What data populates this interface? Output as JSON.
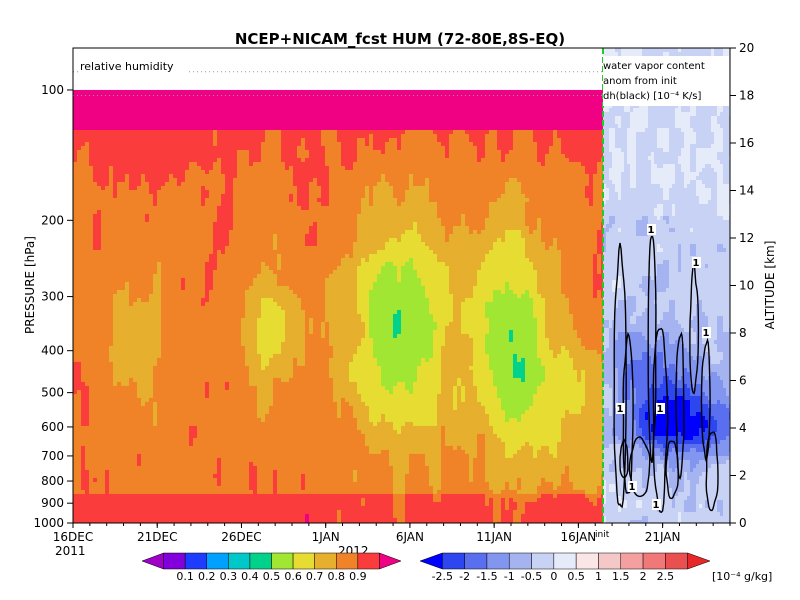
{
  "chart_data": {
    "type": "heatmap",
    "title": "NCEP+NICAM_fcst HUM (72-80E,8S-EQ)",
    "left_panel": {
      "label": "relative humidity",
      "ylabel": "PRESSURE [hPa]",
      "pressure_ticks": [
        "100",
        "200",
        "300",
        "400",
        "500",
        "600",
        "700",
        "800",
        "900",
        "1000"
      ],
      "pressure_values": [
        100,
        200,
        300,
        400,
        500,
        600,
        700,
        800,
        900,
        1000
      ],
      "ylim_hPa": [
        1000,
        80
      ],
      "y_scale": "log"
    },
    "right_panel": {
      "label_lines": [
        "water vapor content",
        "anom from init",
        "dh(black) [10⁻⁴ K/s]"
      ],
      "ylabel": "ALTITUDE [km]",
      "altitude_ticks": [
        "0",
        "2",
        "4",
        "6",
        "8",
        "10",
        "12",
        "14",
        "16",
        "18",
        "20"
      ],
      "ylim_km": [
        0,
        20
      ],
      "contour_labels": [
        "1",
        "1",
        "1",
        "1",
        "1",
        "1",
        "1"
      ]
    },
    "x_axis": {
      "ticks": [
        "16DEC",
        "21DEC",
        "26DEC",
        "1JAN",
        "6JAN",
        "11JAN",
        "16JAN",
        "21JAN"
      ],
      "year_labels": [
        "2011",
        "2012"
      ],
      "init_label": "init",
      "start": "2011-12-16",
      "end": "2012-01-24",
      "init_date": "2012-01-15"
    },
    "rh_colorbar": {
      "levels": [
        "0.1",
        "0.2",
        "0.3",
        "0.4",
        "0.5",
        "0.6",
        "0.7",
        "0.8",
        "0.9"
      ],
      "colors": [
        "#a000c8",
        "#8200dc",
        "#1e3cff",
        "#00a0ff",
        "#00c8c8",
        "#00d28c",
        "#a0e632",
        "#e6dc32",
        "#e6af2d",
        "#f08228",
        "#fa3c3c",
        "#f00082"
      ]
    },
    "anom_colorbar": {
      "levels": [
        "-2.5",
        "-2",
        "-1.5",
        "-1",
        "-0.5",
        "0",
        "0.5",
        "1",
        "1.5",
        "2",
        "2.5"
      ],
      "unit": "[10⁻⁴ g/kg]",
      "colors": [
        "#0000ff",
        "#2d46f0",
        "#5a6ef0",
        "#8296f0",
        "#a5b4f0",
        "#c8d2f5",
        "#e6ebfa",
        "#fae6e6",
        "#f5c8c8",
        "#f5a0a0",
        "#f07878",
        "#eb5050",
        "#e62828"
      ]
    }
  }
}
